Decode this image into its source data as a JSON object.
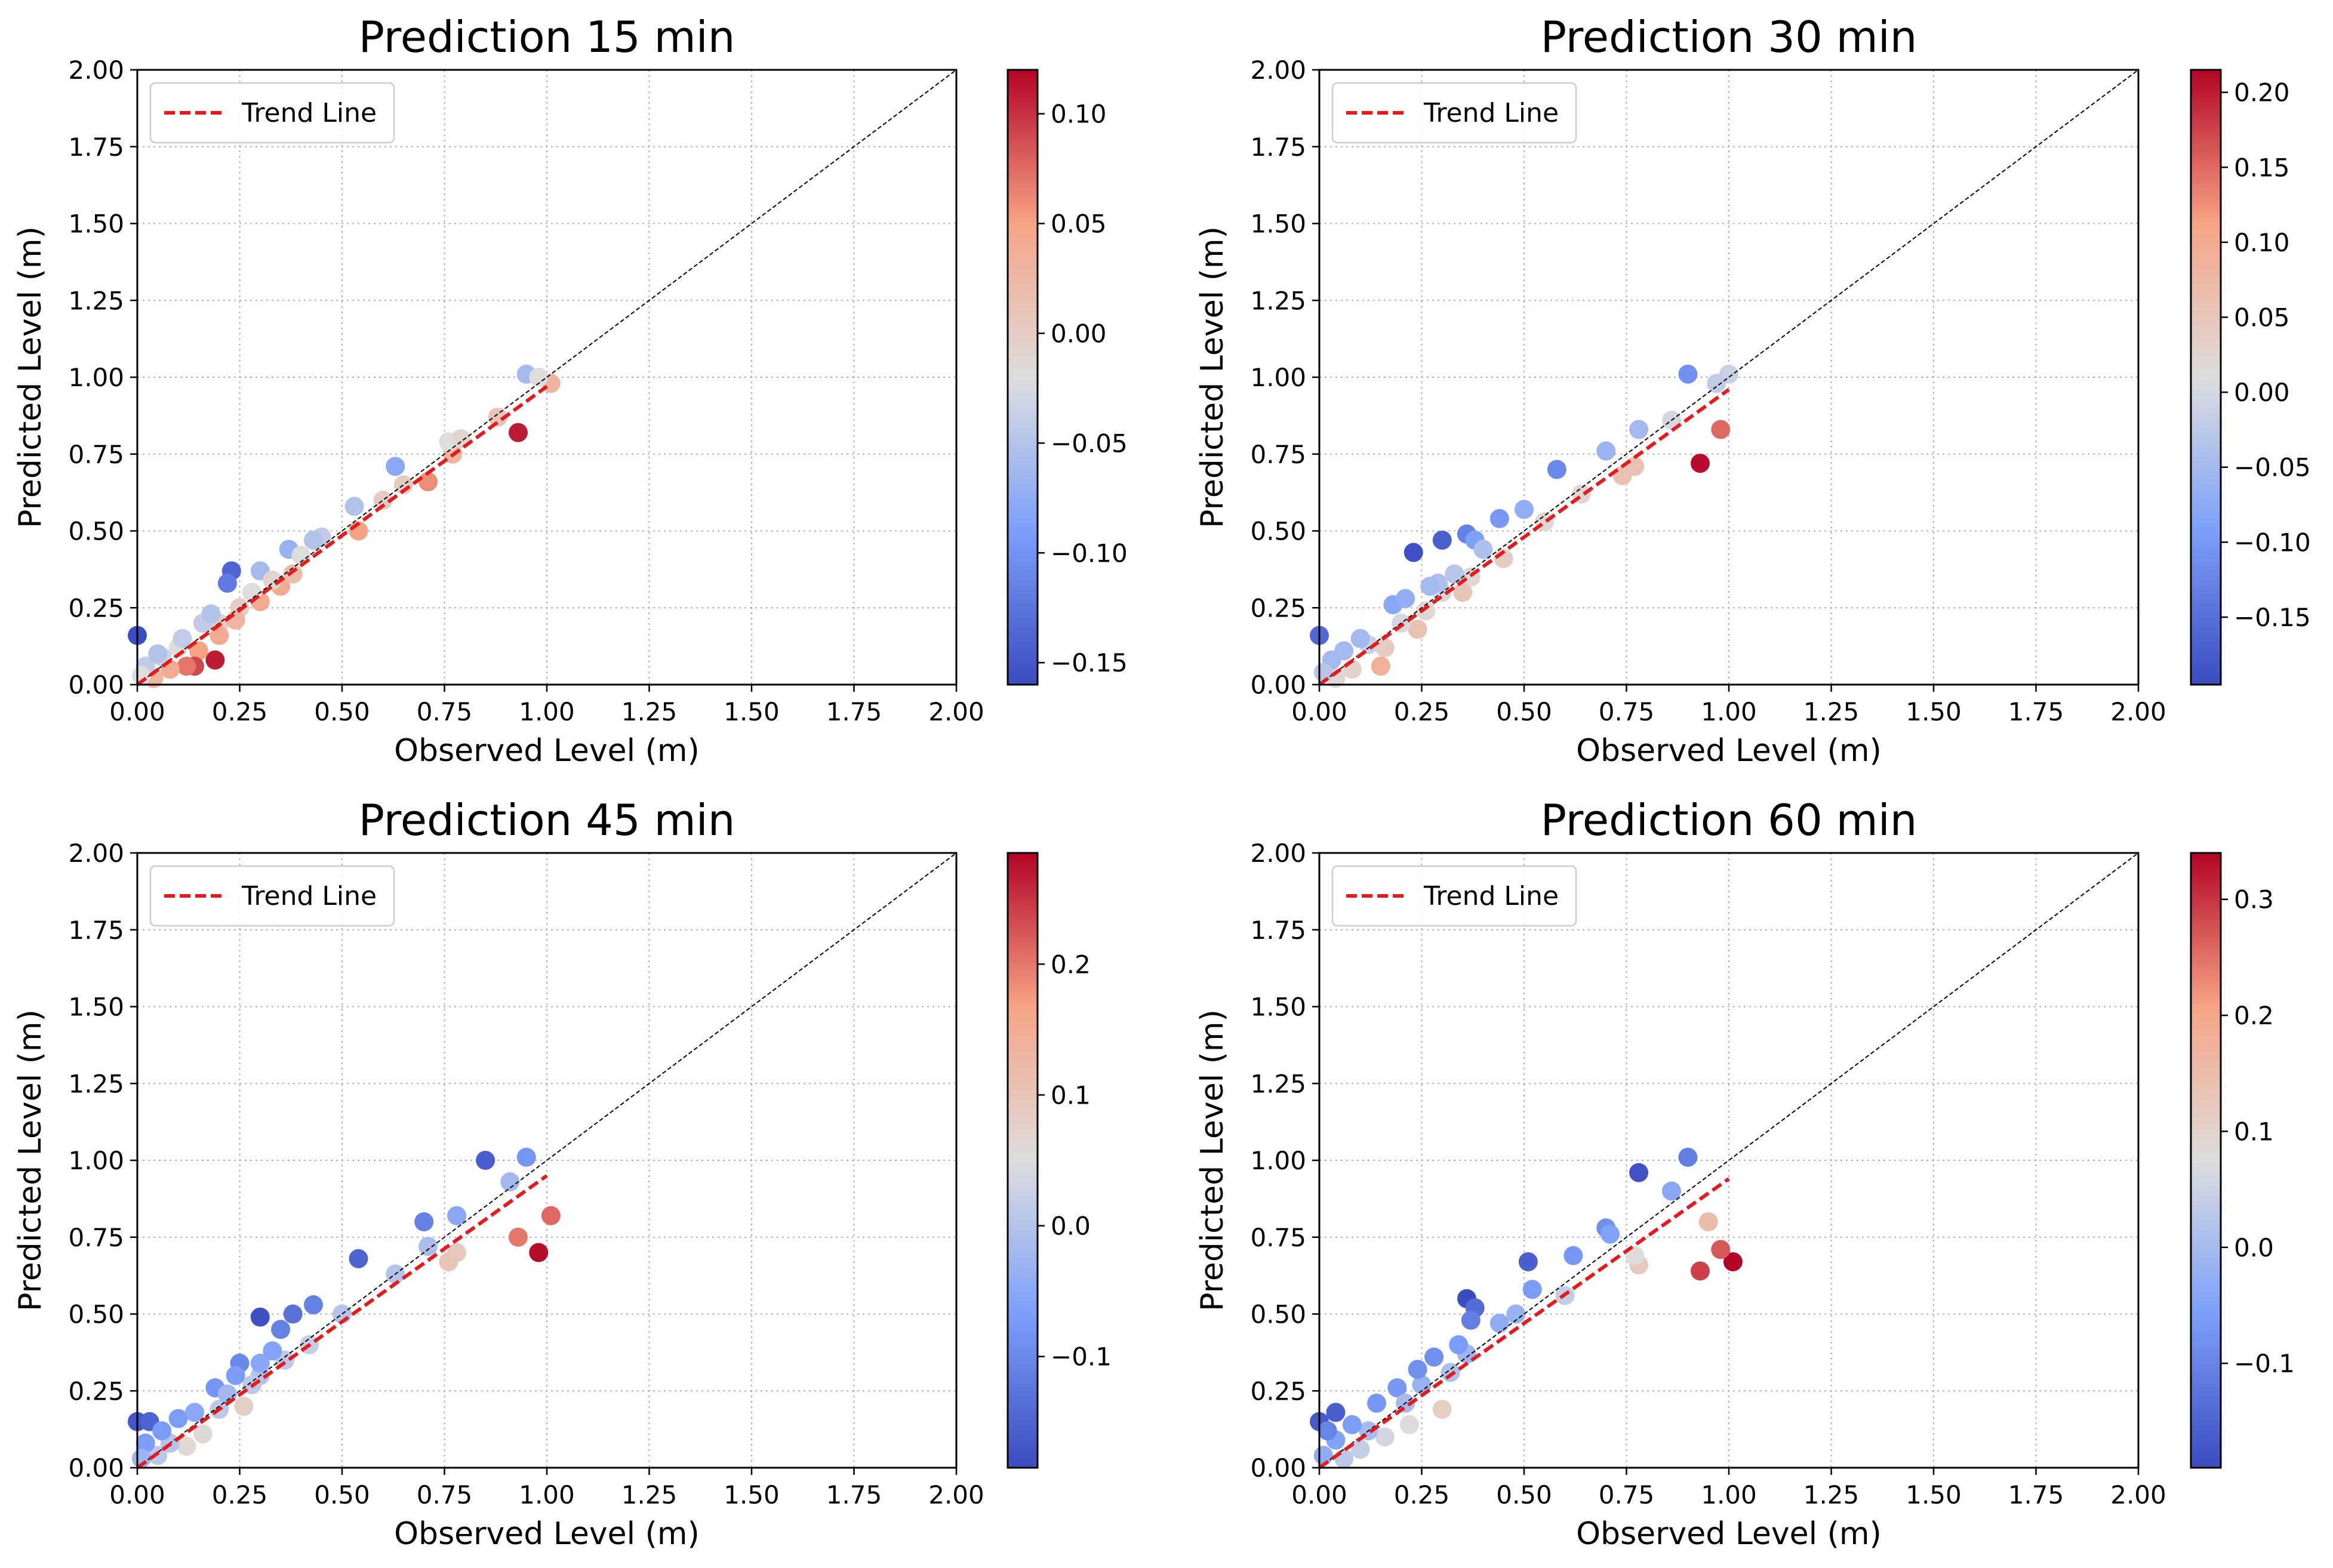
{
  "figure": {
    "background": "#ffffff"
  },
  "chart_data": [
    {
      "type": "scatter",
      "title": "Prediction 15 min",
      "xlabel": "Observed Level (m)",
      "ylabel": "Predicted Level (m)",
      "xlim": [
        0,
        2
      ],
      "ylim": [
        0,
        2
      ],
      "xticks": [
        "0.00",
        "0.25",
        "0.50",
        "0.75",
        "1.00",
        "1.25",
        "1.50",
        "1.75",
        "2.00"
      ],
      "yticks": [
        "0.00",
        "0.25",
        "0.50",
        "0.75",
        "1.00",
        "1.25",
        "1.50",
        "1.75",
        "2.00"
      ],
      "grid": true,
      "legend": {
        "placement": "top-left",
        "entries": [
          "Trend Line"
        ]
      },
      "identity_line": true,
      "trend_line": {
        "x": [
          0.0,
          1.0
        ],
        "y": [
          0.0,
          0.97
        ],
        "color": "#e41a1c"
      },
      "colorbar": {
        "range": [
          -0.16,
          0.12
        ],
        "ticks": [
          0.1,
          0.05,
          0.0,
          -0.05,
          -0.1,
          -0.15
        ],
        "tick_labels": [
          "0.10",
          "0.05",
          "0.00",
          "−0.05",
          "−0.10",
          "−0.15"
        ],
        "colormap": "coolwarm"
      },
      "points": [
        {
          "x": 0.0,
          "y": 0.16,
          "c": -0.16
        },
        {
          "x": 0.93,
          "y": 0.82,
          "c": 0.11
        },
        {
          "x": 0.19,
          "y": 0.08,
          "c": 0.11
        },
        {
          "x": 0.23,
          "y": 0.37,
          "c": -0.14
        },
        {
          "x": 0.22,
          "y": 0.33,
          "c": -0.12
        },
        {
          "x": 0.95,
          "y": 1.01,
          "c": -0.06
        },
        {
          "x": 1.01,
          "y": 0.98,
          "c": 0.03
        },
        {
          "x": 0.98,
          "y": 1.0,
          "c": -0.02
        },
        {
          "x": 0.63,
          "y": 0.71,
          "c": -0.08
        },
        {
          "x": 0.71,
          "y": 0.66,
          "c": 0.06
        },
        {
          "x": 0.77,
          "y": 0.75,
          "c": 0.03
        },
        {
          "x": 0.76,
          "y": 0.79,
          "c": -0.02
        },
        {
          "x": 0.79,
          "y": 0.8,
          "c": -0.01
        },
        {
          "x": 0.53,
          "y": 0.58,
          "c": -0.05
        },
        {
          "x": 0.54,
          "y": 0.5,
          "c": 0.05
        },
        {
          "x": 0.6,
          "y": 0.6,
          "c": 0.0
        },
        {
          "x": 0.45,
          "y": 0.48,
          "c": -0.04
        },
        {
          "x": 0.43,
          "y": 0.47,
          "c": -0.05
        },
        {
          "x": 0.37,
          "y": 0.44,
          "c": -0.07
        },
        {
          "x": 0.4,
          "y": 0.42,
          "c": -0.02
        },
        {
          "x": 0.35,
          "y": 0.32,
          "c": 0.04
        },
        {
          "x": 0.3,
          "y": 0.27,
          "c": 0.04
        },
        {
          "x": 0.28,
          "y": 0.3,
          "c": -0.02
        },
        {
          "x": 0.3,
          "y": 0.37,
          "c": -0.06
        },
        {
          "x": 0.25,
          "y": 0.25,
          "c": 0.0
        },
        {
          "x": 0.2,
          "y": 0.2,
          "c": 0.0
        },
        {
          "x": 0.2,
          "y": 0.16,
          "c": 0.04
        },
        {
          "x": 0.15,
          "y": 0.11,
          "c": 0.05
        },
        {
          "x": 0.14,
          "y": 0.06,
          "c": 0.09
        },
        {
          "x": 0.12,
          "y": 0.06,
          "c": 0.07
        },
        {
          "x": 0.1,
          "y": 0.12,
          "c": -0.02
        },
        {
          "x": 0.08,
          "y": 0.05,
          "c": 0.04
        },
        {
          "x": 0.06,
          "y": 0.09,
          "c": -0.03
        },
        {
          "x": 0.04,
          "y": 0.02,
          "c": 0.03
        },
        {
          "x": 0.02,
          "y": 0.06,
          "c": -0.04
        },
        {
          "x": 0.01,
          "y": 0.03,
          "c": -0.02
        },
        {
          "x": 0.16,
          "y": 0.2,
          "c": -0.04
        },
        {
          "x": 0.18,
          "y": 0.23,
          "c": -0.05
        },
        {
          "x": 0.11,
          "y": 0.15,
          "c": -0.04
        },
        {
          "x": 0.05,
          "y": 0.1,
          "c": -0.05
        },
        {
          "x": 0.24,
          "y": 0.21,
          "c": 0.03
        },
        {
          "x": 0.33,
          "y": 0.34,
          "c": -0.01
        },
        {
          "x": 0.38,
          "y": 0.36,
          "c": 0.02
        },
        {
          "x": 0.65,
          "y": 0.65,
          "c": 0.0
        },
        {
          "x": 0.88,
          "y": 0.87,
          "c": 0.01
        }
      ]
    },
    {
      "type": "scatter",
      "title": "Prediction 30 min",
      "xlabel": "Observed Level (m)",
      "ylabel": "Predicted Level (m)",
      "xlim": [
        0,
        2
      ],
      "ylim": [
        0,
        2
      ],
      "xticks": [
        "0.00",
        "0.25",
        "0.50",
        "0.75",
        "1.00",
        "1.25",
        "1.50",
        "1.75",
        "2.00"
      ],
      "yticks": [
        "0.00",
        "0.25",
        "0.50",
        "0.75",
        "1.00",
        "1.25",
        "1.50",
        "1.75",
        "2.00"
      ],
      "grid": true,
      "legend": {
        "placement": "top-left",
        "entries": [
          "Trend Line"
        ]
      },
      "identity_line": true,
      "trend_line": {
        "x": [
          0.0,
          1.0
        ],
        "y": [
          0.0,
          0.96
        ],
        "color": "#e41a1c"
      },
      "colorbar": {
        "range": [
          -0.195,
          0.215
        ],
        "ticks": [
          0.2,
          0.15,
          0.1,
          0.05,
          0.0,
          -0.05,
          -0.1,
          -0.15
        ],
        "tick_labels": [
          "0.20",
          "0.15",
          "0.10",
          "0.05",
          "0.00",
          "−0.05",
          "−0.10",
          "−0.15"
        ],
        "colormap": "coolwarm"
      },
      "points": [
        {
          "x": 0.0,
          "y": 0.16,
          "c": -0.16
        },
        {
          "x": 0.23,
          "y": 0.43,
          "c": -0.19
        },
        {
          "x": 0.3,
          "y": 0.47,
          "c": -0.17
        },
        {
          "x": 0.93,
          "y": 0.72,
          "c": 0.21
        },
        {
          "x": 0.98,
          "y": 0.83,
          "c": 0.15
        },
        {
          "x": 0.9,
          "y": 1.01,
          "c": -0.11
        },
        {
          "x": 1.0,
          "y": 1.01,
          "c": -0.01
        },
        {
          "x": 0.97,
          "y": 0.98,
          "c": -0.02
        },
        {
          "x": 0.58,
          "y": 0.7,
          "c": -0.12
        },
        {
          "x": 0.7,
          "y": 0.76,
          "c": -0.06
        },
        {
          "x": 0.78,
          "y": 0.83,
          "c": -0.05
        },
        {
          "x": 0.77,
          "y": 0.71,
          "c": 0.06
        },
        {
          "x": 0.74,
          "y": 0.68,
          "c": 0.06
        },
        {
          "x": 0.64,
          "y": 0.62,
          "c": 0.02
        },
        {
          "x": 0.5,
          "y": 0.57,
          "c": -0.07
        },
        {
          "x": 0.44,
          "y": 0.54,
          "c": -0.1
        },
        {
          "x": 0.36,
          "y": 0.49,
          "c": -0.13
        },
        {
          "x": 0.38,
          "y": 0.47,
          "c": -0.09
        },
        {
          "x": 0.4,
          "y": 0.44,
          "c": -0.04
        },
        {
          "x": 0.45,
          "y": 0.41,
          "c": 0.04
        },
        {
          "x": 0.37,
          "y": 0.35,
          "c": 0.02
        },
        {
          "x": 0.35,
          "y": 0.3,
          "c": 0.05
        },
        {
          "x": 0.3,
          "y": 0.3,
          "c": 0.0
        },
        {
          "x": 0.29,
          "y": 0.33,
          "c": -0.04
        },
        {
          "x": 0.26,
          "y": 0.24,
          "c": 0.02
        },
        {
          "x": 0.24,
          "y": 0.18,
          "c": 0.06
        },
        {
          "x": 0.2,
          "y": 0.2,
          "c": 0.0
        },
        {
          "x": 0.18,
          "y": 0.26,
          "c": -0.08
        },
        {
          "x": 0.15,
          "y": 0.06,
          "c": 0.09
        },
        {
          "x": 0.16,
          "y": 0.12,
          "c": 0.04
        },
        {
          "x": 0.12,
          "y": 0.13,
          "c": -0.01
        },
        {
          "x": 0.1,
          "y": 0.15,
          "c": -0.05
        },
        {
          "x": 0.08,
          "y": 0.05,
          "c": 0.03
        },
        {
          "x": 0.06,
          "y": 0.11,
          "c": -0.05
        },
        {
          "x": 0.04,
          "y": 0.02,
          "c": 0.02
        },
        {
          "x": 0.03,
          "y": 0.08,
          "c": -0.05
        },
        {
          "x": 0.01,
          "y": 0.04,
          "c": -0.03
        },
        {
          "x": 0.21,
          "y": 0.28,
          "c": -0.07
        },
        {
          "x": 0.27,
          "y": 0.32,
          "c": -0.05
        },
        {
          "x": 0.33,
          "y": 0.36,
          "c": -0.03
        },
        {
          "x": 0.86,
          "y": 0.86,
          "c": 0.0
        },
        {
          "x": 0.55,
          "y": 0.53,
          "c": 0.02
        }
      ]
    },
    {
      "type": "scatter",
      "title": "Prediction 45 min",
      "xlabel": "Observed Level (m)",
      "ylabel": "Predicted Level (m)",
      "xlim": [
        0,
        2
      ],
      "ylim": [
        0,
        2
      ],
      "xticks": [
        "0.00",
        "0.25",
        "0.50",
        "0.75",
        "1.00",
        "1.25",
        "1.50",
        "1.75",
        "2.00"
      ],
      "yticks": [
        "0.00",
        "0.25",
        "0.50",
        "0.75",
        "1.00",
        "1.25",
        "1.50",
        "1.75",
        "2.00"
      ],
      "grid": true,
      "legend": {
        "placement": "top-left",
        "entries": [
          "Trend Line"
        ]
      },
      "identity_line": true,
      "trend_line": {
        "x": [
          0.0,
          1.0
        ],
        "y": [
          0.0,
          0.95
        ],
        "color": "#e41a1c"
      },
      "colorbar": {
        "range": [
          -0.185,
          0.285
        ],
        "ticks": [
          0.2,
          0.1,
          0.0,
          -0.1
        ],
        "tick_labels": [
          "0.2",
          "0.1",
          "0.0",
          "−0.1"
        ],
        "colormap": "coolwarm"
      },
      "points": [
        {
          "x": 0.0,
          "y": 0.15,
          "c": -0.17
        },
        {
          "x": 0.03,
          "y": 0.15,
          "c": -0.15
        },
        {
          "x": 0.3,
          "y": 0.49,
          "c": -0.18
        },
        {
          "x": 0.98,
          "y": 0.7,
          "c": 0.28
        },
        {
          "x": 0.93,
          "y": 0.75,
          "c": 0.2
        },
        {
          "x": 1.01,
          "y": 0.82,
          "c": 0.21
        },
        {
          "x": 0.85,
          "y": 1.0,
          "c": -0.16
        },
        {
          "x": 0.95,
          "y": 1.01,
          "c": -0.08
        },
        {
          "x": 0.91,
          "y": 0.93,
          "c": -0.02
        },
        {
          "x": 0.54,
          "y": 0.68,
          "c": -0.15
        },
        {
          "x": 0.7,
          "y": 0.8,
          "c": -0.11
        },
        {
          "x": 0.78,
          "y": 0.82,
          "c": -0.05
        },
        {
          "x": 0.78,
          "y": 0.7,
          "c": 0.09
        },
        {
          "x": 0.76,
          "y": 0.67,
          "c": 0.1
        },
        {
          "x": 0.63,
          "y": 0.63,
          "c": 0.0
        },
        {
          "x": 0.43,
          "y": 0.53,
          "c": -0.11
        },
        {
          "x": 0.38,
          "y": 0.5,
          "c": -0.13
        },
        {
          "x": 0.35,
          "y": 0.45,
          "c": -0.11
        },
        {
          "x": 0.42,
          "y": 0.4,
          "c": 0.02
        },
        {
          "x": 0.36,
          "y": 0.35,
          "c": 0.01
        },
        {
          "x": 0.3,
          "y": 0.3,
          "c": 0.0
        },
        {
          "x": 0.3,
          "y": 0.34,
          "c": -0.05
        },
        {
          "x": 0.25,
          "y": 0.34,
          "c": -0.1
        },
        {
          "x": 0.26,
          "y": 0.2,
          "c": 0.08
        },
        {
          "x": 0.24,
          "y": 0.3,
          "c": -0.07
        },
        {
          "x": 0.2,
          "y": 0.19,
          "c": 0.01
        },
        {
          "x": 0.19,
          "y": 0.26,
          "c": -0.08
        },
        {
          "x": 0.16,
          "y": 0.11,
          "c": 0.06
        },
        {
          "x": 0.14,
          "y": 0.18,
          "c": -0.05
        },
        {
          "x": 0.12,
          "y": 0.07,
          "c": 0.06
        },
        {
          "x": 0.1,
          "y": 0.16,
          "c": -0.07
        },
        {
          "x": 0.08,
          "y": 0.08,
          "c": 0.0
        },
        {
          "x": 0.06,
          "y": 0.12,
          "c": -0.07
        },
        {
          "x": 0.05,
          "y": 0.04,
          "c": 0.01
        },
        {
          "x": 0.02,
          "y": 0.08,
          "c": -0.07
        },
        {
          "x": 0.01,
          "y": 0.03,
          "c": -0.03
        },
        {
          "x": 0.28,
          "y": 0.27,
          "c": 0.01
        },
        {
          "x": 0.33,
          "y": 0.38,
          "c": -0.06
        },
        {
          "x": 0.5,
          "y": 0.5,
          "c": 0.0
        },
        {
          "x": 0.71,
          "y": 0.72,
          "c": -0.01
        },
        {
          "x": 0.22,
          "y": 0.24,
          "c": -0.02
        }
      ]
    },
    {
      "type": "scatter",
      "title": "Prediction 60 min",
      "xlabel": "Observed Level (m)",
      "ylabel": "Predicted Level (m)",
      "xlim": [
        0,
        2
      ],
      "ylim": [
        0,
        2
      ],
      "xticks": [
        "0.00",
        "0.25",
        "0.50",
        "0.75",
        "1.00",
        "1.25",
        "1.50",
        "1.75",
        "2.00"
      ],
      "yticks": [
        "0.00",
        "0.25",
        "0.50",
        "0.75",
        "1.00",
        "1.25",
        "1.50",
        "1.75",
        "2.00"
      ],
      "grid": true,
      "legend": {
        "placement": "top-left",
        "entries": [
          "Trend Line"
        ]
      },
      "identity_line": true,
      "trend_line": {
        "x": [
          0.0,
          1.0
        ],
        "y": [
          0.0,
          0.94
        ],
        "color": "#e41a1c"
      },
      "colorbar": {
        "range": [
          -0.19,
          0.34
        ],
        "ticks": [
          0.3,
          0.2,
          0.1,
          0.0,
          -0.1
        ],
        "tick_labels": [
          "0.3",
          "0.2",
          "0.1",
          "0.0",
          "−0.1"
        ],
        "colormap": "coolwarm"
      },
      "points": [
        {
          "x": 0.0,
          "y": 0.15,
          "c": -0.17
        },
        {
          "x": 0.04,
          "y": 0.18,
          "c": -0.16
        },
        {
          "x": 0.36,
          "y": 0.55,
          "c": -0.19
        },
        {
          "x": 1.01,
          "y": 0.67,
          "c": 0.34
        },
        {
          "x": 0.93,
          "y": 0.64,
          "c": 0.29
        },
        {
          "x": 0.98,
          "y": 0.71,
          "c": 0.27
        },
        {
          "x": 0.95,
          "y": 0.8,
          "c": 0.15
        },
        {
          "x": 0.78,
          "y": 0.96,
          "c": -0.18
        },
        {
          "x": 0.9,
          "y": 1.01,
          "c": -0.11
        },
        {
          "x": 0.86,
          "y": 0.9,
          "c": -0.04
        },
        {
          "x": 0.51,
          "y": 0.67,
          "c": -0.16
        },
        {
          "x": 0.7,
          "y": 0.78,
          "c": -0.08
        },
        {
          "x": 0.71,
          "y": 0.76,
          "c": -0.05
        },
        {
          "x": 0.78,
          "y": 0.66,
          "c": 0.12
        },
        {
          "x": 0.77,
          "y": 0.69,
          "c": 0.08
        },
        {
          "x": 0.62,
          "y": 0.69,
          "c": -0.07
        },
        {
          "x": 0.6,
          "y": 0.56,
          "c": 0.04
        },
        {
          "x": 0.52,
          "y": 0.58,
          "c": -0.06
        },
        {
          "x": 0.38,
          "y": 0.52,
          "c": -0.14
        },
        {
          "x": 0.37,
          "y": 0.48,
          "c": -0.11
        },
        {
          "x": 0.44,
          "y": 0.47,
          "c": -0.03
        },
        {
          "x": 0.36,
          "y": 0.37,
          "c": -0.01
        },
        {
          "x": 0.32,
          "y": 0.31,
          "c": 0.01
        },
        {
          "x": 0.28,
          "y": 0.36,
          "c": -0.08
        },
        {
          "x": 0.3,
          "y": 0.19,
          "c": 0.11
        },
        {
          "x": 0.25,
          "y": 0.27,
          "c": -0.02
        },
        {
          "x": 0.22,
          "y": 0.14,
          "c": 0.08
        },
        {
          "x": 0.19,
          "y": 0.26,
          "c": -0.07
        },
        {
          "x": 0.16,
          "y": 0.1,
          "c": 0.06
        },
        {
          "x": 0.14,
          "y": 0.21,
          "c": -0.07
        },
        {
          "x": 0.12,
          "y": 0.12,
          "c": 0.0
        },
        {
          "x": 0.1,
          "y": 0.06,
          "c": 0.04
        },
        {
          "x": 0.08,
          "y": 0.14,
          "c": -0.06
        },
        {
          "x": 0.06,
          "y": 0.03,
          "c": 0.03
        },
        {
          "x": 0.04,
          "y": 0.09,
          "c": -0.05
        },
        {
          "x": 0.02,
          "y": 0.12,
          "c": -0.1
        },
        {
          "x": 0.01,
          "y": 0.04,
          "c": -0.03
        },
        {
          "x": 0.24,
          "y": 0.32,
          "c": -0.08
        },
        {
          "x": 0.34,
          "y": 0.4,
          "c": -0.06
        },
        {
          "x": 0.48,
          "y": 0.5,
          "c": -0.02
        },
        {
          "x": 0.21,
          "y": 0.21,
          "c": 0.0
        }
      ]
    }
  ]
}
